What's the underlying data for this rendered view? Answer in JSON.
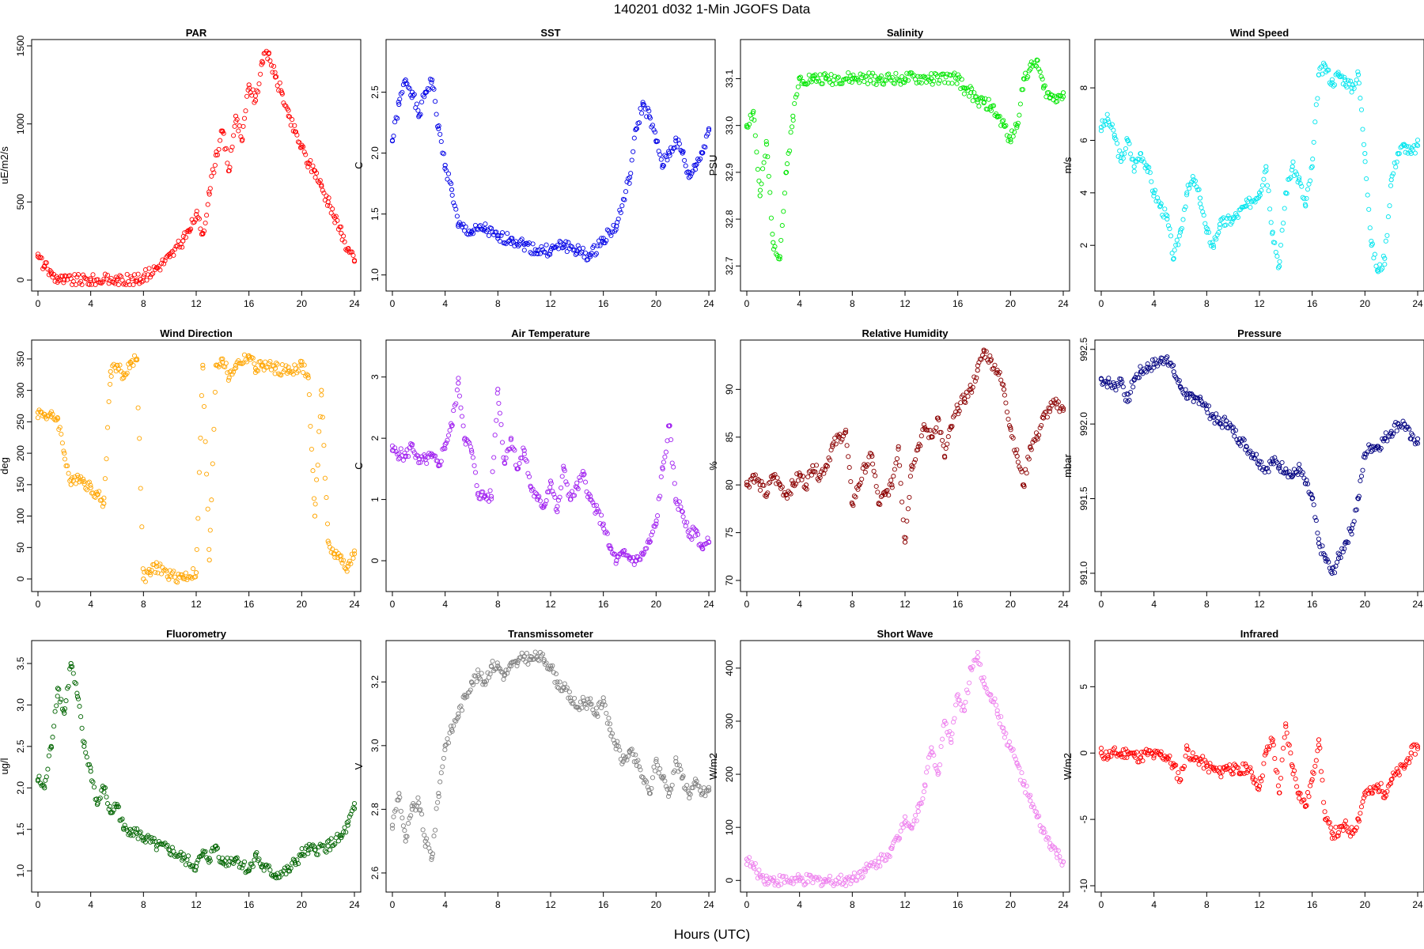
{
  "title": "140201    d032    1-Min  JGOFS Data",
  "xlabel": "Hours (UTC)",
  "chart_data": [
    {
      "type": "scatter",
      "title": "PAR",
      "ylabel": "uE/m2/s",
      "color": "#ff0000",
      "xlim": [
        0,
        24
      ],
      "xticks": [
        0,
        4,
        8,
        12,
        16,
        20,
        24
      ],
      "ylim": [
        -30,
        1500
      ],
      "yticks": [
        0,
        500,
        1000,
        1500
      ],
      "x": [
        0,
        0.5,
        1,
        1.5,
        2,
        4,
        6,
        7.5,
        8,
        9,
        10,
        11,
        11.5,
        12,
        12.5,
        13,
        13.5,
        14,
        14.5,
        15,
        15.5,
        16,
        16.5,
        17,
        17.5,
        18,
        18.5,
        19,
        19.5,
        20,
        20.5,
        21,
        21.5,
        22,
        22.5,
        23,
        23.5,
        24
      ],
      "y": [
        150,
        90,
        40,
        10,
        0,
        0,
        0,
        0,
        20,
        80,
        150,
        250,
        320,
        420,
        300,
        550,
        800,
        950,
        700,
        1050,
        900,
        1250,
        1150,
        1400,
        1450,
        1300,
        1200,
        1050,
        950,
        850,
        750,
        700,
        600,
        500,
        400,
        300,
        200,
        120
      ]
    },
    {
      "type": "scatter",
      "title": "SST",
      "ylabel": "C",
      "color": "#0000e6",
      "xlim": [
        0,
        24
      ],
      "xticks": [
        0,
        4,
        8,
        12,
        16,
        20,
        24
      ],
      "ylim": [
        0.92,
        2.88
      ],
      "yticks": [
        1.0,
        1.5,
        2.0,
        2.5
      ],
      "x": [
        0,
        0.5,
        1,
        1.5,
        2,
        2.5,
        3,
        3.5,
        4,
        4.5,
        5,
        6,
        7,
        8,
        9,
        10,
        11,
        12,
        13,
        14,
        15,
        16,
        17,
        18,
        18.5,
        19,
        19.5,
        20,
        20.5,
        21,
        21.5,
        22,
        22.5,
        23,
        23.5,
        24
      ],
      "y": [
        2.1,
        2.4,
        2.6,
        2.5,
        2.3,
        2.5,
        2.6,
        2.2,
        1.9,
        1.7,
        1.4,
        1.35,
        1.38,
        1.3,
        1.3,
        1.25,
        1.2,
        1.2,
        1.25,
        1.2,
        1.15,
        1.3,
        1.4,
        1.8,
        2.2,
        2.4,
        2.3,
        2.1,
        1.9,
        2.0,
        2.1,
        2.0,
        1.8,
        1.9,
        2.0,
        2.2
      ]
    },
    {
      "type": "scatter",
      "title": "Salinity",
      "ylabel": "PSU",
      "color": "#00e600",
      "xlim": [
        0,
        24
      ],
      "xticks": [
        0,
        4,
        8,
        12,
        16,
        20,
        24
      ],
      "ylim": [
        32.66,
        33.17
      ],
      "yticks": [
        32.7,
        32.8,
        32.9,
        33.0,
        33.1
      ],
      "x": [
        0,
        0.5,
        1,
        1.5,
        2,
        2.5,
        3,
        3.5,
        4,
        5,
        6,
        8,
        10,
        12,
        14,
        16,
        16.5,
        17,
        17.5,
        18,
        18.5,
        19,
        19.5,
        20,
        20.5,
        21,
        21.5,
        22,
        22.5,
        23,
        23.5,
        24
      ],
      "y": [
        33.0,
        33.03,
        32.85,
        32.96,
        32.75,
        32.72,
        32.9,
        33.02,
        33.1,
        33.1,
        33.1,
        33.1,
        33.1,
        33.1,
        33.1,
        33.1,
        33.08,
        33.07,
        33.05,
        33.05,
        33.04,
        33.02,
        33.0,
        32.97,
        33.0,
        33.1,
        33.12,
        33.14,
        33.08,
        33.06,
        33.06,
        33.07
      ]
    },
    {
      "type": "scatter",
      "title": "Wind Speed",
      "ylabel": "m/s",
      "color": "#00e5ee",
      "xlim": [
        0,
        24
      ],
      "xticks": [
        0,
        4,
        8,
        12,
        16,
        20,
        24
      ],
      "ylim": [
        0.5,
        9.6
      ],
      "yticks": [
        2,
        4,
        6,
        8
      ],
      "x": [
        0,
        0.5,
        1,
        1.5,
        2,
        2.5,
        3,
        3.5,
        4,
        4.5,
        5,
        5.5,
        6,
        6.5,
        7,
        7.5,
        8,
        8.5,
        9,
        10,
        11,
        12,
        12.5,
        13,
        13.5,
        14,
        14.5,
        15,
        15.5,
        16,
        16.5,
        17,
        17.5,
        18,
        18.5,
        19,
        19.5,
        20,
        20.5,
        21,
        21.5,
        22,
        22.5,
        23,
        23.5,
        24
      ],
      "y": [
        6.5,
        6.8,
        6.2,
        5.2,
        6.0,
        5.0,
        5.5,
        5.0,
        4.0,
        3.5,
        3.0,
        1.5,
        2.5,
        4.0,
        4.5,
        3.8,
        2.5,
        2.0,
        2.8,
        3.0,
        3.5,
        4.0,
        5.0,
        2.5,
        1.2,
        4.0,
        5.0,
        4.5,
        3.5,
        5.0,
        8.5,
        8.8,
        8.2,
        8.5,
        8.3,
        8.0,
        8.5,
        5.5,
        2.0,
        1.0,
        1.5,
        4.5,
        5.5,
        5.8,
        5.5,
        5.8
      ]
    },
    {
      "type": "scatter",
      "title": "Wind Direction",
      "ylabel": "deg",
      "color": "#ffa500",
      "xlim": [
        0,
        24
      ],
      "xticks": [
        0,
        4,
        8,
        12,
        16,
        20,
        24
      ],
      "ylim": [
        -10,
        370
      ],
      "yticks": [
        0,
        50,
        100,
        150,
        200,
        250,
        300,
        350
      ],
      "x": [
        0,
        0.5,
        1,
        1.5,
        2,
        2.5,
        3,
        3.5,
        4,
        4.5,
        5,
        5.5,
        6,
        6.5,
        7,
        7.5,
        8,
        8.5,
        9,
        10,
        11,
        12,
        12.5,
        13,
        13.5,
        14,
        14.5,
        15,
        16,
        16.5,
        17,
        18,
        19,
        20,
        20.5,
        21,
        21.5,
        22,
        22.5,
        23,
        23.5,
        24
      ],
      "y": [
        265,
        262,
        258,
        255,
        200,
        150,
        165,
        155,
        145,
        135,
        120,
        330,
        340,
        320,
        345,
        350,
        0,
        10,
        20,
        5,
        3,
        10,
        340,
        30,
        340,
        350,
        320,
        340,
        355,
        335,
        340,
        335,
        330,
        340,
        320,
        100,
        300,
        60,
        40,
        30,
        20,
        40
      ]
    },
    {
      "type": "scatter",
      "title": "Air Temperature",
      "ylabel": "C",
      "color": "#a020f0",
      "xlim": [
        0,
        24
      ],
      "xticks": [
        0,
        4,
        8,
        12,
        16,
        20,
        24
      ],
      "ylim": [
        -0.4,
        3.5
      ],
      "yticks": [
        0,
        1,
        2,
        3
      ],
      "x": [
        0,
        0.5,
        1,
        1.5,
        2,
        2.5,
        3,
        3.5,
        4,
        4.5,
        5,
        5.5,
        6,
        6.5,
        7,
        7.5,
        8,
        8.5,
        9,
        9.5,
        10,
        10.5,
        11,
        11.5,
        12,
        12.5,
        13,
        13.5,
        14,
        14.5,
        15,
        15.5,
        16,
        16.5,
        17,
        17.5,
        18,
        18.5,
        19,
        19.5,
        20,
        20.5,
        21,
        21.5,
        22,
        22.5,
        23,
        23.5,
        24
      ],
      "y": [
        1.8,
        1.75,
        1.7,
        1.9,
        1.6,
        1.65,
        1.7,
        1.55,
        1.9,
        2.2,
        2.9,
        2.0,
        1.8,
        1.1,
        1.05,
        1.05,
        2.8,
        1.6,
        2.0,
        1.5,
        1.8,
        1.2,
        1.0,
        0.9,
        1.3,
        0.8,
        1.5,
        1.0,
        1.2,
        1.4,
        1.0,
        0.8,
        0.6,
        0.2,
        0.0,
        0.1,
        0.05,
        0.0,
        0.1,
        0.3,
        0.6,
        1.5,
        2.2,
        1.0,
        0.8,
        0.4,
        0.5,
        0.2,
        0.3
      ]
    },
    {
      "type": "scatter",
      "title": "Relative Humidity",
      "ylabel": "%",
      "color": "#8b0000",
      "xlim": [
        0,
        24
      ],
      "xticks": [
        0,
        4,
        8,
        12,
        16,
        20,
        24
      ],
      "ylim": [
        69.5,
        94.5
      ],
      "yticks": [
        70,
        75,
        80,
        85,
        90
      ],
      "x": [
        0,
        0.5,
        1,
        1.5,
        2,
        2.5,
        3,
        3.5,
        4,
        4.5,
        5,
        5.5,
        6,
        6.5,
        7,
        7.5,
        8,
        8.5,
        9,
        9.5,
        10,
        10.5,
        11,
        11.5,
        12,
        12.5,
        13,
        13.5,
        14,
        14.5,
        15,
        15.5,
        16,
        16.5,
        17,
        17.5,
        18,
        18.5,
        19,
        19.5,
        20,
        20.5,
        21,
        21.5,
        22,
        22.5,
        23,
        23.5,
        24
      ],
      "y": [
        80,
        81,
        80,
        79,
        81,
        80,
        79,
        80,
        81,
        80,
        82,
        81,
        82,
        84,
        85,
        85.5,
        78,
        80,
        82,
        83,
        78,
        79,
        80,
        84,
        74,
        82,
        84,
        86,
        85,
        87,
        83,
        86,
        88,
        89,
        90,
        92,
        94,
        93,
        92,
        90,
        86,
        83,
        80,
        84,
        85,
        87,
        88,
        88.5,
        88
      ]
    },
    {
      "type": "scatter",
      "title": "Pressure",
      "ylabel": "mbar",
      "color": "#000080",
      "xlim": [
        0,
        24
      ],
      "xticks": [
        0,
        4,
        8,
        12,
        16,
        20,
        24
      ],
      "ylim": [
        990.92,
        992.52
      ],
      "yticks": [
        991.0,
        991.5,
        992.0,
        992.5
      ],
      "x": [
        0,
        0.5,
        1,
        1.5,
        2,
        2.5,
        3,
        3.5,
        4,
        4.5,
        5,
        5.5,
        6,
        6.5,
        7,
        7.5,
        8,
        8.5,
        9,
        9.5,
        10,
        10.5,
        11,
        11.5,
        12,
        12.5,
        13,
        13.5,
        14,
        14.5,
        15,
        15.5,
        16,
        16.5,
        17,
        17.5,
        18,
        18.5,
        19,
        19.5,
        20,
        20.5,
        21,
        21.5,
        22,
        22.5,
        23,
        23.5,
        24
      ],
      "y": [
        992.3,
        992.28,
        992.25,
        992.3,
        992.15,
        992.3,
        992.35,
        992.38,
        992.4,
        992.42,
        992.45,
        992.35,
        992.25,
        992.2,
        992.15,
        992.18,
        992.1,
        992.05,
        992.0,
        992.02,
        991.95,
        991.9,
        991.85,
        991.8,
        991.75,
        991.7,
        991.75,
        991.72,
        991.7,
        991.65,
        991.7,
        991.6,
        991.5,
        991.2,
        991.1,
        991.0,
        991.1,
        991.2,
        991.3,
        991.5,
        991.8,
        991.85,
        991.85,
        991.9,
        991.95,
        992.0,
        992.0,
        991.9,
        991.9
      ]
    },
    {
      "type": "scatter",
      "title": "Fluorometry",
      "ylabel": "ug/l",
      "color": "#006400",
      "xlim": [
        0,
        24
      ],
      "xticks": [
        0,
        4,
        8,
        12,
        16,
        20,
        24
      ],
      "ylim": [
        0.82,
        3.7
      ],
      "yticks": [
        1.0,
        1.5,
        2.0,
        2.5,
        3.0,
        3.5
      ],
      "x": [
        0,
        0.5,
        1,
        1.5,
        2,
        2.5,
        3,
        3.5,
        4,
        4.5,
        5,
        5.5,
        6,
        6.5,
        7,
        7.5,
        8,
        9,
        10,
        11,
        12,
        12.5,
        13,
        13.5,
        14,
        15,
        16,
        16.5,
        17,
        18,
        19,
        19.5,
        20,
        20.5,
        21,
        22,
        23,
        23.5,
        24
      ],
      "y": [
        2.1,
        2.0,
        2.5,
        3.2,
        2.9,
        3.5,
        3.1,
        2.5,
        2.2,
        1.8,
        2.0,
        1.7,
        1.8,
        1.5,
        1.5,
        1.45,
        1.4,
        1.3,
        1.25,
        1.15,
        1.05,
        1.2,
        1.15,
        1.3,
        1.1,
        1.15,
        1.0,
        1.2,
        1.05,
        0.95,
        1.0,
        1.1,
        1.2,
        1.25,
        1.25,
        1.3,
        1.4,
        1.55,
        1.75
      ]
    },
    {
      "type": "scatter",
      "title": "Transmissometer",
      "ylabel": "V",
      "color": "#808080",
      "xlim": [
        0,
        24
      ],
      "xticks": [
        0,
        4,
        8,
        12,
        16,
        20,
        24
      ],
      "ylim": [
        2.56,
        3.31
      ],
      "yticks": [
        2.6,
        2.8,
        3.0,
        3.2
      ],
      "x": [
        0,
        0.5,
        1,
        1.5,
        2,
        2.5,
        3,
        3.5,
        4,
        4.5,
        5,
        5.5,
        6,
        6.5,
        7,
        7.5,
        8,
        8.5,
        9,
        9.5,
        10,
        10.5,
        11,
        11.5,
        12,
        12.5,
        13,
        13.5,
        14,
        14.5,
        15,
        15.5,
        16,
        16.5,
        17,
        17.5,
        18,
        18.5,
        19,
        19.5,
        20,
        20.5,
        21,
        21.5,
        22,
        22.5,
        23,
        23.5,
        24
      ],
      "y": [
        2.75,
        2.85,
        2.7,
        2.8,
        2.82,
        2.7,
        2.65,
        2.85,
        3.0,
        3.05,
        3.1,
        3.15,
        3.2,
        3.22,
        3.2,
        3.25,
        3.25,
        3.22,
        3.25,
        3.26,
        3.28,
        3.27,
        3.28,
        3.27,
        3.25,
        3.2,
        3.18,
        3.15,
        3.12,
        3.14,
        3.13,
        3.1,
        3.15,
        3.05,
        3.0,
        2.95,
        2.98,
        2.95,
        2.9,
        2.85,
        2.95,
        2.9,
        2.85,
        2.95,
        2.9,
        2.85,
        2.88,
        2.85,
        2.86
      ]
    },
    {
      "type": "scatter",
      "title": "Short Wave",
      "ylabel": "W/m2",
      "color": "#ee82ee",
      "xlim": [
        0,
        24
      ],
      "xticks": [
        0,
        4,
        8,
        12,
        16,
        20,
        24
      ],
      "ylim": [
        -10,
        440
      ],
      "yticks": [
        0,
        100,
        200,
        300,
        400
      ],
      "x": [
        0,
        0.5,
        1,
        1.5,
        2,
        4,
        6,
        7.5,
        8,
        9,
        10,
        11,
        11.5,
        12,
        12.5,
        13,
        13.5,
        14,
        14.5,
        15,
        15.5,
        16,
        16.5,
        17,
        17.5,
        18,
        18.5,
        19,
        19.5,
        20,
        20.5,
        21,
        21.5,
        22,
        22.5,
        23,
        23.5,
        24
      ],
      "y": [
        40,
        25,
        10,
        3,
        0,
        0,
        0,
        0,
        5,
        20,
        35,
        60,
        80,
        120,
        100,
        130,
        180,
        250,
        200,
        300,
        260,
        350,
        320,
        400,
        420,
        370,
        350,
        320,
        280,
        250,
        220,
        180,
        150,
        120,
        90,
        70,
        50,
        35
      ]
    },
    {
      "type": "scatter",
      "title": "Infrared",
      "ylabel": "W/m2",
      "color": "#ff0000",
      "xlim": [
        0,
        24
      ],
      "xticks": [
        0,
        4,
        8,
        12,
        16,
        20,
        24
      ],
      "ylim": [
        -10,
        8
      ],
      "yticks": [
        -10,
        -5,
        0,
        5
      ],
      "x": [
        0,
        0.5,
        1,
        1.5,
        2,
        2.5,
        3,
        3.5,
        4,
        4.5,
        5,
        5.5,
        6,
        6.5,
        7,
        7.5,
        8,
        8.5,
        9,
        9.5,
        10,
        10.5,
        11,
        11.5,
        12,
        12.5,
        13,
        13.5,
        14,
        14.5,
        15,
        15.5,
        16,
        16.5,
        17,
        17.5,
        18,
        18.5,
        19,
        19.5,
        20,
        20.5,
        21,
        21.5,
        22,
        22.5,
        23,
        23.5,
        24
      ],
      "y": [
        0,
        -0.2,
        0,
        -0.1,
        0.1,
        -0.2,
        -0.3,
        0,
        -0.2,
        -0.1,
        -0.3,
        -1.0,
        -2.0,
        0.3,
        -0.5,
        -0.5,
        -1.0,
        -1.2,
        -1.5,
        -1.0,
        -1.2,
        -1.5,
        -1.0,
        -1.8,
        -2.5,
        0,
        1.0,
        -3.0,
        2.0,
        -1.0,
        -3.0,
        -4.0,
        -2.0,
        1.0,
        -5.0,
        -6.0,
        -6.0,
        -5.5,
        -6.0,
        -5.0,
        -3.0,
        -3.0,
        -2.5,
        -3.0,
        -2.0,
        -1.5,
        -1.0,
        0,
        0.5
      ]
    }
  ]
}
